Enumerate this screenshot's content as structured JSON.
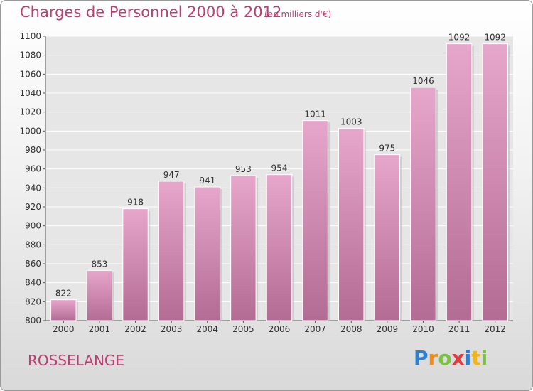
{
  "title": "Charges de Personnel 2000 à 2012",
  "unit_note": "(en milliers d'€)",
  "commune": "ROSSELANGE",
  "logo": {
    "letters": [
      "P",
      "r",
      "o",
      "x",
      "i",
      "t",
      "i"
    ],
    "colors": [
      "#2f7fd1",
      "#f08a1c",
      "#7cc242",
      "#e23b3b",
      "#2f7fd1",
      "#f0b51c",
      "#7cc242"
    ]
  },
  "colors": {
    "bar_top": "#e7a6cb",
    "bar_bottom": "#b36c94",
    "accent": "#bc3f73"
  },
  "chart_data": {
    "type": "bar",
    "title": "Charges de Personnel 2000 à 2012",
    "categories": [
      "2000",
      "2001",
      "2002",
      "2003",
      "2004",
      "2005",
      "2006",
      "2007",
      "2008",
      "2009",
      "2010",
      "2011",
      "2012"
    ],
    "values": [
      822,
      853,
      918,
      947,
      941,
      953,
      954,
      1011,
      1003,
      975,
      1046,
      1092,
      1092
    ],
    "ylim": [
      800,
      1100
    ],
    "yticks": [
      800,
      820,
      840,
      860,
      880,
      900,
      920,
      940,
      960,
      980,
      1000,
      1020,
      1040,
      1060,
      1080,
      1100
    ],
    "grid": true
  }
}
